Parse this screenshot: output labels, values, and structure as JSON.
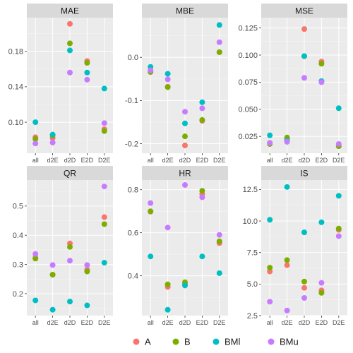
{
  "chart_data": {
    "type": "scatter",
    "categories": [
      "all",
      "d2E",
      "d2D",
      "E2D",
      "D2E"
    ],
    "series_colors": {
      "A": "#F8766D",
      "B": "#7CAE00",
      "BMl": "#00BFC4",
      "BMu": "#C77CFF"
    },
    "legend": {
      "position": "bottom",
      "entries": [
        "A",
        "B",
        "BMl",
        "BMu"
      ]
    },
    "grid": true,
    "panels": [
      {
        "title": "MAE",
        "ylim": [
          0.065,
          0.218
        ],
        "yticks": [
          {
            "v": 0.1,
            "label": "0.10"
          },
          {
            "v": 0.14,
            "label": "0.14"
          },
          {
            "v": 0.18,
            "label": "0.18"
          }
        ],
        "series": [
          {
            "name": "A",
            "values": [
              0.083,
              0.082,
              0.211,
              0.169,
              0.092
            ]
          },
          {
            "name": "B",
            "values": [
              0.081,
              0.085,
              0.189,
              0.167,
              0.09
            ]
          },
          {
            "name": "BMl",
            "values": [
              0.1,
              0.086,
              0.181,
              0.156,
              0.138
            ]
          },
          {
            "name": "BMu",
            "values": [
              0.076,
              0.077,
              0.156,
              0.148,
              0.099
            ]
          }
        ]
      },
      {
        "title": "MBE",
        "ylim": [
          -0.222,
          0.092
        ],
        "yticks": [
          {
            "v": -0.2,
            "label": "-0.2"
          },
          {
            "v": -0.1,
            "label": "-0.1"
          },
          {
            "v": 0.0,
            "label": "0.0"
          }
        ],
        "series": [
          {
            "name": "A",
            "values": [
              -0.033,
              -0.068,
              -0.204,
              -0.147,
              0.012
            ]
          },
          {
            "name": "B",
            "values": [
              -0.034,
              -0.069,
              -0.183,
              -0.145,
              0.012
            ]
          },
          {
            "name": "BMl",
            "values": [
              -0.022,
              -0.038,
              -0.153,
              -0.104,
              0.075
            ]
          },
          {
            "name": "BMu",
            "values": [
              -0.03,
              -0.051,
              -0.126,
              -0.118,
              0.035
            ]
          }
        ]
      },
      {
        "title": "MSE",
        "ylim": [
          0.0095,
          0.1345
        ],
        "yticks": [
          {
            "v": 0.025,
            "label": "0.025"
          },
          {
            "v": 0.05,
            "label": "0.050"
          },
          {
            "v": 0.075,
            "label": "0.075"
          },
          {
            "v": 0.1,
            "label": "0.100"
          },
          {
            "v": 0.125,
            "label": "0.125"
          }
        ],
        "series": [
          {
            "name": "A",
            "values": [
              0.019,
              0.023,
              0.124,
              0.094,
              0.016
            ]
          },
          {
            "name": "B",
            "values": [
              0.018,
              0.024,
              0.099,
              0.092,
              0.016
            ]
          },
          {
            "name": "BMl",
            "values": [
              0.026,
              0.021,
              0.099,
              0.076,
              0.051
            ]
          },
          {
            "name": "BMu",
            "values": [
              0.019,
              0.02,
              0.079,
              0.075,
              0.018
            ]
          }
        ]
      },
      {
        "title": "QR",
        "ylim": [
          0.125,
          0.589
        ],
        "yticks": [
          {
            "v": 0.2,
            "label": "0.2"
          },
          {
            "v": 0.3,
            "label": "0.3"
          },
          {
            "v": 0.4,
            "label": "0.4"
          },
          {
            "v": 0.5,
            "label": "0.5"
          }
        ],
        "series": [
          {
            "name": "A",
            "values": [
              0.323,
              0.265,
              0.372,
              0.282,
              0.462
            ]
          },
          {
            "name": "B",
            "values": [
              0.32,
              0.265,
              0.36,
              0.276,
              0.438
            ]
          },
          {
            "name": "BMl",
            "values": [
              0.177,
              0.145,
              0.173,
              0.16,
              0.306
            ]
          },
          {
            "name": "BMu",
            "values": [
              0.336,
              0.298,
              0.313,
              0.298,
              0.567
            ]
          }
        ]
      },
      {
        "title": "HR",
        "ylim": [
          0.215,
          0.845
        ],
        "yticks": [
          {
            "v": 0.4,
            "label": "0.4"
          },
          {
            "v": 0.6,
            "label": "0.6"
          },
          {
            "v": 0.8,
            "label": "0.8"
          }
        ],
        "series": [
          {
            "name": "A",
            "values": [
              0.698,
              0.348,
              0.363,
              0.78,
              0.552
            ]
          },
          {
            "name": "B",
            "values": [
              0.7,
              0.36,
              0.37,
              0.795,
              0.56
            ]
          },
          {
            "name": "BMl",
            "values": [
              0.49,
              0.242,
              0.355,
              0.49,
              0.412
            ]
          },
          {
            "name": "BMu",
            "values": [
              0.738,
              0.624,
              0.822,
              0.765,
              0.59
            ]
          }
        ]
      },
      {
        "title": "IS",
        "ylim": [
          2.5,
          13.25
        ],
        "yticks": [
          {
            "v": 2.5,
            "label": "2.5"
          },
          {
            "v": 5.0,
            "label": "5.0"
          },
          {
            "v": 7.5,
            "label": "7.5"
          },
          {
            "v": 10.0,
            "label": "10.0"
          },
          {
            "v": 12.5,
            "label": "12.5"
          }
        ],
        "series": [
          {
            "name": "A",
            "values": [
              6.0,
              6.5,
              4.7,
              4.5,
              9.3
            ]
          },
          {
            "name": "B",
            "values": [
              6.3,
              6.9,
              5.2,
              4.3,
              9.4
            ]
          },
          {
            "name": "BMl",
            "values": [
              10.1,
              12.7,
              9.1,
              9.9,
              12.0
            ]
          },
          {
            "name": "BMu",
            "values": [
              3.6,
              2.9,
              3.9,
              5.1,
              8.8
            ]
          }
        ]
      }
    ]
  }
}
